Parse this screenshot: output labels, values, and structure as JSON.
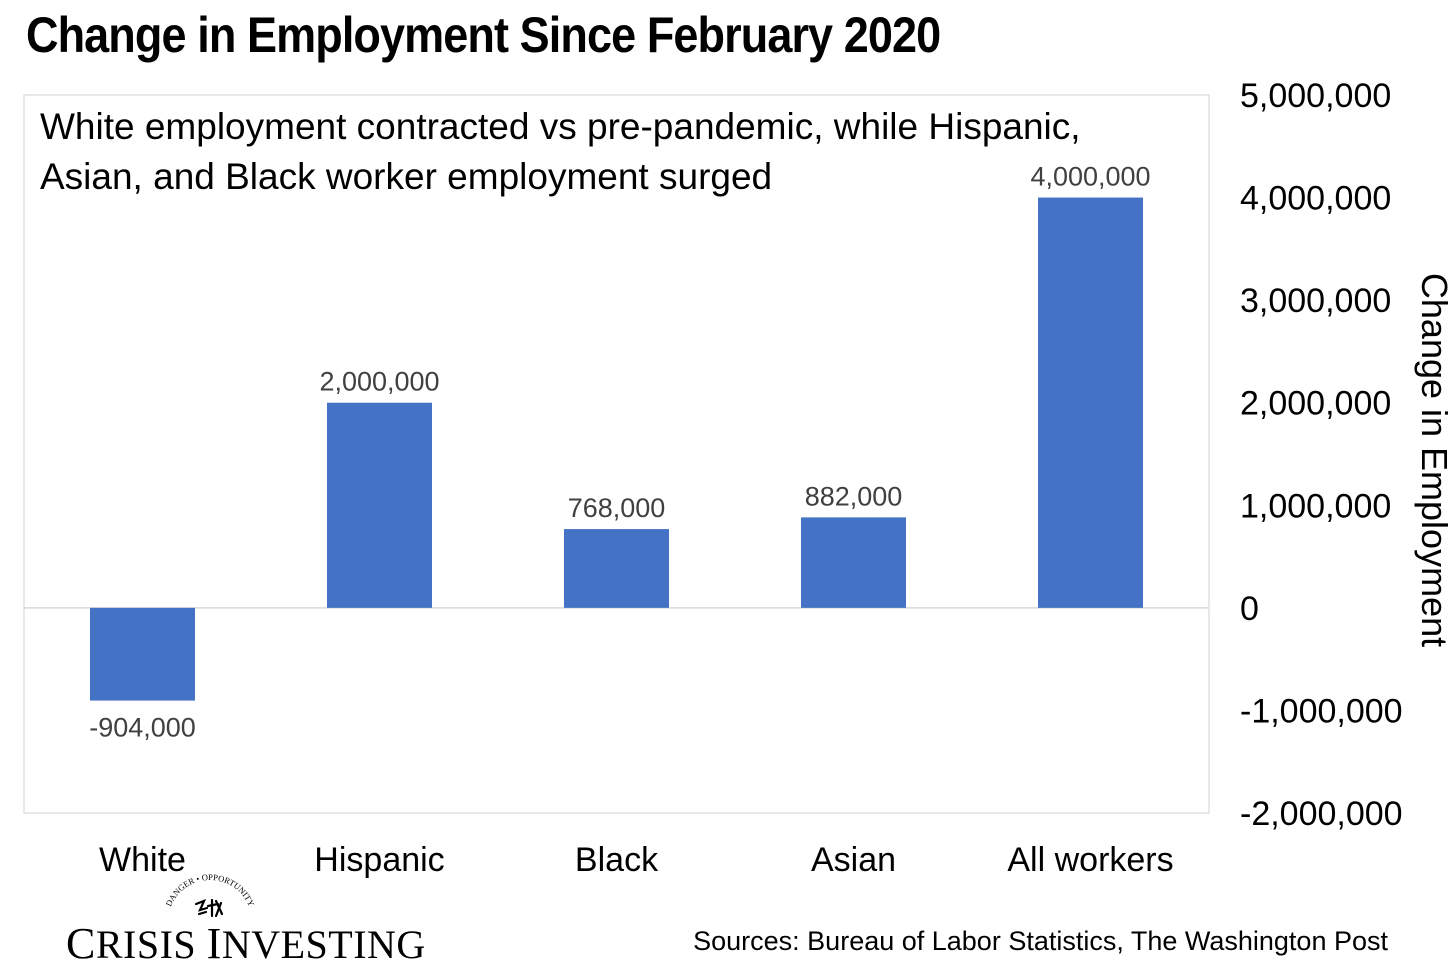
{
  "title": "Change in Employment Since February 2020",
  "subtitle": [
    "White employment contracted vs pre-pandemic, while Hispanic,",
    "Asian, and Black worker employment surged"
  ],
  "chart_data": {
    "type": "bar",
    "title": "Change in Employment Since February 2020",
    "subtitle": "White employment contracted vs pre-pandemic, while Hispanic, Asian, and Black worker employment surged",
    "categories": [
      "White",
      "Hispanic",
      "Black",
      "Asian",
      "All workers"
    ],
    "values": [
      -904000,
      2000000,
      768000,
      882000,
      4000000
    ],
    "data_labels": [
      "-904,000",
      "2,000,000",
      "768,000",
      "882,000",
      "4,000,000"
    ],
    "xlabel": "",
    "ylabel": "Change in Employment",
    "ylim": [
      -2000000,
      5000000
    ],
    "yticks": [
      5000000,
      4000000,
      3000000,
      2000000,
      1000000,
      0,
      -1000000,
      -2000000
    ],
    "ytick_labels": [
      "5,000,000",
      "4,000,000",
      "3,000,000",
      "2,000,000",
      "1,000,000",
      "0",
      "-1,000,000",
      "-2,000,000"
    ],
    "yaxis_side": "right",
    "grid": false,
    "legend": "none",
    "bar_color": "#4472c4"
  },
  "logo": {
    "arc_top_text": "DANGER • OPPORTUNITY",
    "name_parts": [
      "C",
      "RISIS ",
      "I",
      "NVESTING"
    ]
  },
  "sources": "Sources: Bureau of Labor Statistics, The Washington Post"
}
